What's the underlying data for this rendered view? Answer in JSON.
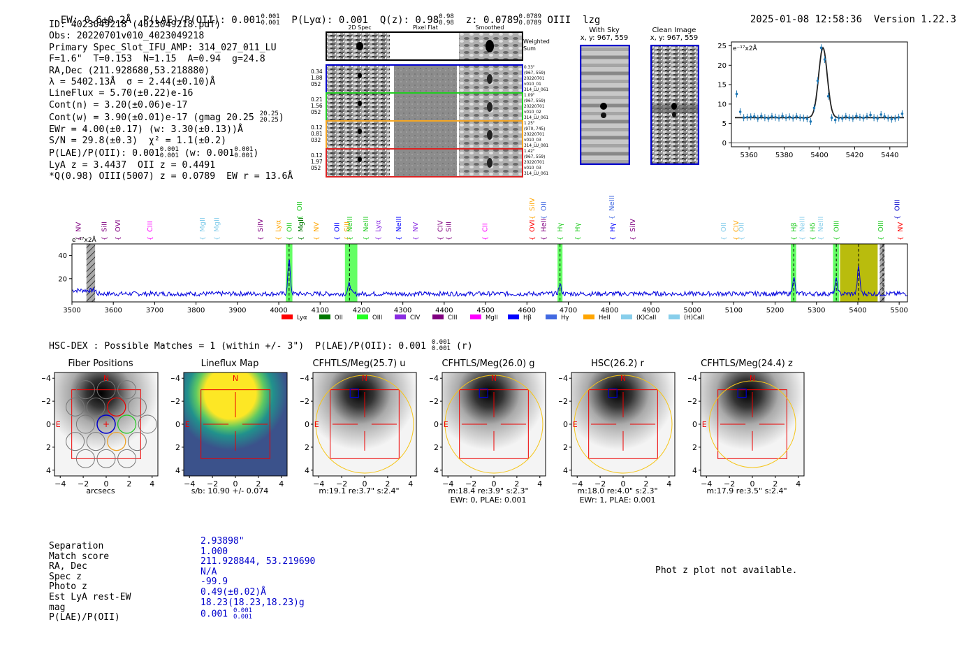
{
  "header": {
    "ew": "EW: 0.6±0.2Å",
    "plae_label": "P(LAE)/P(OII): 0.001",
    "plae_hi": "0.001",
    "plae_lo": "0.001",
    "plya": "P(Lyα): 0.001",
    "qz_label": "Q(z): 0.98",
    "qz_hi": "0.98",
    "qz_lo": "0.98",
    "z_label": "z: 0.0789",
    "z_hi": "0.0789",
    "z_lo": "0.0789",
    "z_line": "OIII",
    "flag": "lzg",
    "datetime": "2025-01-08 12:58:36",
    "version": "Version 1.22.3"
  },
  "info": {
    "id": "ID: 4023049218 (4023049218.pdf)",
    "obs": "Obs: 20220701v010_4023049218",
    "slot": "Primary Spec_Slot_IFU_AMP: 314_027_011_LU",
    "params": "F=1.6\"  T=0.153  N=1.15  A=0.94  g=24.8",
    "radec": "RA,Dec (211.928680,53.218880)",
    "lambda": "λ = 5402.13Å  σ = 2.44(±0.10)Å",
    "lineflux": "LineFlux = 5.70(±0.22)e-16",
    "contn": "Cont(n) = 3.20(±0.06)e-17",
    "contw": "Cont(w) = 3.90(±0.01)e-17 (gmag 20.25",
    "contw_hi": "20.25",
    "contw_lo": "20.25",
    "ewr": "EWr = 4.00(±0.17) (w: 3.30(±0.13))Å",
    "sn": "S/N = 29.8(±0.3)  χ² = 1.1(±0.2)",
    "plae": "P(LAE)/P(OII): 0.001",
    "plae_hi": "0.001",
    "plae_lo": "0.001",
    "plae_w": "(w: 0.001",
    "plae_w_hi": "0.001",
    "plae_w_lo": "0.001",
    "lyaz": "LyA z = 3.4437  OII z = 0.4491",
    "q": "*Q(0.98) OIII(5007) z = 0.0789  EW r = 13.6Å"
  },
  "cutouts": {
    "col_2d": "2D Spec",
    "col_flat": "Pixel Flat",
    "col_smooth": "Smoothed",
    "weighted": "Weighted\nSum",
    "rows": [
      {
        "left": [
          "0.34",
          "1.88",
          "052"
        ],
        "right": [
          "0.33\"",
          "(967, 559)",
          "20220701",
          "v010_01",
          "314_LU_061"
        ],
        "color": "#0000cc"
      },
      {
        "left": [
          "0.21",
          "1.56",
          "052"
        ],
        "right": [
          "1.09\"",
          "(967, 559)",
          "20220701",
          "v010_02",
          "314_LU_061"
        ],
        "color": "#22cc22"
      },
      {
        "left": [
          "0.12",
          "0.81",
          "032"
        ],
        "right": [
          "1.25\"",
          "(970, 745)",
          "20220701",
          "v010_03",
          "314_LU_081"
        ],
        "color": "#f5a623"
      },
      {
        "left": [
          "0.12",
          "1.97",
          "052"
        ],
        "right": [
          "1.42\"",
          "(967, 559)",
          "20220701",
          "v010_03",
          "314_LU_061"
        ],
        "color": "#dd2222"
      }
    ],
    "with_sky": "With Sky",
    "with_sky_xy": "x, y: 967, 559",
    "clean": "Clean Image",
    "clean_xy": "x, y: 967, 559"
  },
  "chart_data": [
    {
      "type": "scatter",
      "title": "",
      "ylabel": "e⁻¹⁷x2Å",
      "xlim": [
        5350,
        5450
      ],
      "ylim": [
        -1,
        26
      ],
      "xticks": [
        5360,
        5380,
        5400,
        5420,
        5440
      ],
      "yticks": [
        0,
        5,
        10,
        15,
        20,
        25
      ],
      "x": [
        5353,
        5355,
        5357,
        5359,
        5361,
        5363,
        5365,
        5367,
        5369,
        5371,
        5373,
        5375,
        5377,
        5379,
        5381,
        5383,
        5385,
        5387,
        5389,
        5391,
        5393,
        5395,
        5397,
        5399,
        5401,
        5403,
        5405,
        5407,
        5409,
        5411,
        5413,
        5415,
        5417,
        5419,
        5421,
        5423,
        5425,
        5427,
        5429,
        5431,
        5433,
        5435,
        5437,
        5439,
        5441,
        5443,
        5445,
        5447
      ],
      "y": [
        12.6,
        8.0,
        6.5,
        6.6,
        6.7,
        6.8,
        6.3,
        6.9,
        6.5,
        6.3,
        6.8,
        6.6,
        6.4,
        6.9,
        6.5,
        6.7,
        6.4,
        6.8,
        6.5,
        6.4,
        6.2,
        5.5,
        9.0,
        16.0,
        24.5,
        21.5,
        12.0,
        6.5,
        5.9,
        6.4,
        6.3,
        6.8,
        6.5,
        6.3,
        6.9,
        6.6,
        6.4,
        6.8,
        7.2,
        6.5,
        6.3,
        7.3,
        6.8,
        6.4,
        6.1,
        6.3,
        6.6,
        7.5
      ]
    },
    {
      "type": "line",
      "title": "",
      "ylabel": "e⁻¹⁷x2Å",
      "xlim": [
        3500,
        5520
      ],
      "ylim": [
        0,
        50
      ],
      "xticks": [
        3500,
        3600,
        3700,
        3800,
        3900,
        4000,
        4100,
        4200,
        4300,
        4400,
        4500,
        4600,
        4700,
        4800,
        4900,
        5000,
        5100,
        5200,
        5300,
        5400,
        5500
      ],
      "yticks": [
        20,
        40
      ],
      "peaks": [
        {
          "x": 4025,
          "height": 29
        },
        {
          "x": 4171,
          "height": 9
        },
        {
          "x": 4680,
          "height": 8
        },
        {
          "x": 5245,
          "height": 14
        },
        {
          "x": 5348,
          "height": 12
        },
        {
          "x": 5402,
          "height": 23
        }
      ],
      "continuum": 7,
      "legend": [
        {
          "name": "Lyα",
          "color": "#ff0000"
        },
        {
          "name": "OII",
          "color": "#007700"
        },
        {
          "name": "OIII",
          "color": "#22ff22"
        },
        {
          "name": "CIV",
          "color": "#8a2be2"
        },
        {
          "name": "CIII",
          "color": "#800080"
        },
        {
          "name": "MgII",
          "color": "#ff00ff"
        },
        {
          "name": "Hβ",
          "color": "#0000ff"
        },
        {
          "name": "Hγ",
          "color": "#4169e1"
        },
        {
          "name": "HeII",
          "color": "#ffa500"
        },
        {
          "name": "(K)CaII",
          "color": "#87ceeb"
        },
        {
          "name": "(H)CaII",
          "color": "#87ceeb"
        }
      ],
      "lines": [
        {
          "name": "NV",
          "x": 3515,
          "color": "#800080",
          "raised": false
        },
        {
          "name": "SiII",
          "x": 3578,
          "color": "#800080",
          "raised": false
        },
        {
          "name": "OVI",
          "x": 3611,
          "color": "#800080",
          "raised": false
        },
        {
          "name": "CIII",
          "x": 3688,
          "color": "#ff00ff",
          "raised": false
        },
        {
          "name": "MgII",
          "x": 3815,
          "color": "#87ceeb",
          "raised": false
        },
        {
          "name": "MgII",
          "x": 3850,
          "color": "#87ceeb",
          "raised": false
        },
        {
          "name": "SiIV",
          "x": 3955,
          "color": "#800080",
          "raised": false
        },
        {
          "name": "Lyα",
          "x": 3998,
          "color": "#ffa500",
          "raised": false
        },
        {
          "name": "OII",
          "x": 4025,
          "color": "#22cc22",
          "raised": false
        },
        {
          "name": "OII",
          "x": 4050,
          "color": "#22cc22",
          "raised": true
        },
        {
          "name": "MgII",
          "x": 4053,
          "color": "#007700",
          "raised": false
        },
        {
          "name": "NV",
          "x": 4090,
          "color": "#ffa500",
          "raised": false
        },
        {
          "name": "OII",
          "x": 4140,
          "color": "#0000ff",
          "raised": false
        },
        {
          "name": "SiII",
          "x": 4165,
          "color": "#ffa500",
          "raised": false
        },
        {
          "name": "NeIII",
          "x": 4171,
          "color": "#22cc22",
          "raised": false
        },
        {
          "name": "NeIII",
          "x": 4210,
          "color": "#22cc22",
          "raised": false
        },
        {
          "name": "Lyα",
          "x": 4240,
          "color": "#8a2be2",
          "raised": false
        },
        {
          "name": "NeIII",
          "x": 4290,
          "color": "#0000ff",
          "raised": false
        },
        {
          "name": "NV",
          "x": 4330,
          "color": "#8a2be2",
          "raised": false
        },
        {
          "name": "CIV",
          "x": 4390,
          "color": "#800080",
          "raised": false
        },
        {
          "name": "SiII",
          "x": 4410,
          "color": "#800080",
          "raised": false
        },
        {
          "name": "CII",
          "x": 4498,
          "color": "#ff00ff",
          "raised": false
        },
        {
          "name": "OVI",
          "x": 4612,
          "color": "#ff0000",
          "raised": false
        },
        {
          "name": "SiIV",
          "x": 4612,
          "color": "#ffa500",
          "raised": true
        },
        {
          "name": "HeII",
          "x": 4640,
          "color": "#800080",
          "raised": false
        },
        {
          "name": "OII",
          "x": 4640,
          "color": "#4169e1",
          "raised": true
        },
        {
          "name": "Hγ",
          "x": 4680,
          "color": "#22cc22",
          "raised": false
        },
        {
          "name": "Hγ",
          "x": 4722,
          "color": "#22cc22",
          "raised": false
        },
        {
          "name": "NeIII",
          "x": 4805,
          "color": "#4169e1",
          "raised": true
        },
        {
          "name": "Hγ",
          "x": 4806,
          "color": "#0000ff",
          "raised": false
        },
        {
          "name": "SiIV",
          "x": 4855,
          "color": "#800080",
          "raised": false
        },
        {
          "name": "OII",
          "x": 5075,
          "color": "#87ceeb",
          "raised": false
        },
        {
          "name": "CIV",
          "x": 5105,
          "color": "#ffa500",
          "raised": false
        },
        {
          "name": "OII",
          "x": 5118,
          "color": "#87ceeb",
          "raised": false
        },
        {
          "name": "Hβ",
          "x": 5245,
          "color": "#22cc22",
          "raised": false
        },
        {
          "name": "NeIII",
          "x": 5265,
          "color": "#87ceeb",
          "raised": false
        },
        {
          "name": "Hδ",
          "x": 5290,
          "color": "#22cc22",
          "raised": false
        },
        {
          "name": "NeIII",
          "x": 5310,
          "color": "#87ceeb",
          "raised": false
        },
        {
          "name": "OIII",
          "x": 5348,
          "color": "#22cc22",
          "raised": false
        },
        {
          "name": "OIII",
          "x": 5455,
          "color": "#22cc22",
          "raised": false
        },
        {
          "name": "OIII",
          "x": 5495,
          "color": "#0000cc",
          "raised": true
        },
        {
          "name": "NV",
          "x": 5502,
          "color": "#ff0000",
          "raised": false
        }
      ],
      "bands": [
        {
          "x0": 4017,
          "x1": 4033,
          "color": "#22ff22"
        },
        {
          "x0": 4160,
          "x1": 4190,
          "color": "#22ff22"
        },
        {
          "x0": 4674,
          "x1": 4686,
          "color": "#22ff22"
        },
        {
          "x0": 5238,
          "x1": 5251,
          "color": "#22ff22"
        },
        {
          "x0": 5340,
          "x1": 5355,
          "color": "#22ff22"
        },
        {
          "x0": 5357,
          "x1": 5448,
          "color": "#b5b800"
        }
      ],
      "hatched": [
        {
          "x0": 3535,
          "x1": 3556
        },
        {
          "x0": 5453,
          "x1": 5465
        }
      ]
    }
  ],
  "hsc_dex": {
    "text": "HSC-DEX : Possible Matches = 1 (within +/- 3\")  P(LAE)/P(OII): 0.001",
    "frac_hi": "0.001",
    "frac_lo": "0.001",
    "suffix": "(r)"
  },
  "panels": [
    {
      "title": "Fiber Positions",
      "xlabel": "arcsecs",
      "note": ""
    },
    {
      "title": "Lineflux Map",
      "xlabel": "s/b: 10.90 +/- 0.074",
      "note": ""
    },
    {
      "title": "CFHTLS/Meg(25.7) u",
      "xlabel": "m:19.1  re:3.7\"  s:2.4\"",
      "note": ""
    },
    {
      "title": "CFHTLS/Meg(26.0) g",
      "xlabel": "m:18.4  re:3.9\"  s:2.3\"",
      "note": "EWr: 0, PLAE: 0.001"
    },
    {
      "title": "HSC(26.2) r",
      "xlabel": "m:18.0  re:4.0\"  s:2.3\"",
      "note": "EWr: 1, PLAE: 0.001"
    },
    {
      "title": "CFHTLS/Meg(24.4) z",
      "xlabel": "m:17.9  re:3.5\"  s:2.4\"",
      "note": ""
    }
  ],
  "panel_axis": {
    "ticks": [
      "−4",
      "−2",
      "0",
      "2",
      "4"
    ],
    "n": "N",
    "e": "E"
  },
  "match": {
    "labels": [
      "Separation",
      "Match score",
      "RA, Dec",
      "Spec z",
      "Photo z",
      "Est LyA rest-EW",
      "mag",
      "P(LAE)/P(OII)"
    ],
    "values": [
      "2.93898\"",
      "1.000",
      "211.928844, 53.219690",
      "N/A",
      "-99.9",
      "0.49(±0.02)Å",
      "18.23(18.23,18.23)g",
      "0.001"
    ],
    "plae_hi": "0.001",
    "plae_lo": "0.001"
  },
  "photz": "Phot z plot not available."
}
